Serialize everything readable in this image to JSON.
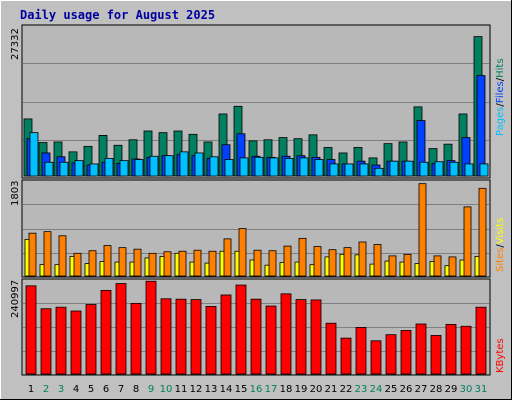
{
  "chart_data": [
    {
      "type": "bar",
      "title": "Daily usage for August 2025",
      "panel": "hits-files-pages",
      "ymax_label": "27332",
      "ylim": [
        0,
        27332
      ],
      "right_labels": [
        {
          "text": "Pages",
          "color": "#00c0ff"
        },
        {
          "text": "/",
          "color": "#000000"
        },
        {
          "text": "Files",
          "color": "#0040ff"
        },
        {
          "text": "/",
          "color": "#000000"
        },
        {
          "text": "Hits",
          "color": "#008060"
        }
      ],
      "categories": [
        "1",
        "2",
        "3",
        "4",
        "5",
        "6",
        "7",
        "8",
        "9",
        "10",
        "11",
        "12",
        "13",
        "14",
        "15",
        "16",
        "17",
        "18",
        "19",
        "20",
        "21",
        "22",
        "23",
        "24",
        "25",
        "26",
        "27",
        "28",
        "29",
        "30",
        "31"
      ],
      "series": [
        {
          "name": "Hits",
          "color": "#008060",
          "values": [
            10400,
            6100,
            6200,
            4400,
            5400,
            7400,
            5600,
            6600,
            8200,
            7900,
            8200,
            7600,
            6200,
            11300,
            12700,
            6400,
            6600,
            7000,
            6800,
            7500,
            5200,
            4200,
            5200,
            3300,
            5900,
            6200,
            12600,
            5000,
            5800,
            11300,
            25400
          ]
        },
        {
          "name": "Files",
          "color": "#0040ff",
          "values": [
            6800,
            4200,
            3500,
            2400,
            2000,
            2500,
            2300,
            3100,
            3400,
            3700,
            3900,
            3700,
            3200,
            5700,
            7700,
            3600,
            3400,
            3600,
            3700,
            3400,
            3000,
            2200,
            2700,
            2000,
            2700,
            2700,
            10100,
            2300,
            2800,
            7000,
            18300
          ]
        },
        {
          "name": "Pages",
          "color": "#00c0ff",
          "values": [
            7900,
            2500,
            2500,
            2800,
            2200,
            3200,
            2800,
            3000,
            3600,
            3700,
            4400,
            4200,
            3500,
            3000,
            3300,
            3400,
            3300,
            3200,
            3300,
            3000,
            2200,
            2200,
            2200,
            1400,
            2700,
            2700,
            2500,
            2600,
            2500,
            2200,
            2200
          ]
        }
      ]
    },
    {
      "type": "bar",
      "panel": "visits-sites",
      "ymax_label": "1803",
      "ylim": [
        0,
        1803
      ],
      "right_labels": [
        {
          "text": "Sites",
          "color": "#ff8000"
        },
        {
          "text": "/",
          "color": "#000000"
        },
        {
          "text": "Visits",
          "color": "#ffff00"
        }
      ],
      "categories": [
        "1",
        "2",
        "3",
        "4",
        "5",
        "6",
        "7",
        "8",
        "9",
        "10",
        "11",
        "12",
        "13",
        "14",
        "15",
        "16",
        "17",
        "18",
        "19",
        "20",
        "21",
        "22",
        "23",
        "24",
        "25",
        "26",
        "27",
        "28",
        "29",
        "30",
        "31"
      ],
      "series": [
        {
          "name": "Visits",
          "color": "#ffff00",
          "values": [
            710,
            220,
            220,
            380,
            240,
            280,
            270,
            270,
            350,
            380,
            440,
            270,
            250,
            480,
            480,
            310,
            210,
            260,
            270,
            220,
            370,
            420,
            410,
            230,
            290,
            270,
            240,
            280,
            200,
            310,
            380
          ]
        },
        {
          "name": "Sites",
          "color": "#ff8000",
          "values": [
            830,
            860,
            780,
            440,
            490,
            590,
            550,
            520,
            440,
            470,
            480,
            500,
            480,
            720,
            920,
            500,
            490,
            580,
            730,
            570,
            510,
            550,
            660,
            610,
            390,
            420,
            1790,
            390,
            370,
            1340,
            1700
          ]
        }
      ]
    },
    {
      "type": "bar",
      "panel": "kbytes",
      "ymax_label": "240997",
      "ylim": [
        0,
        240997
      ],
      "right_labels": [
        {
          "text": "KBytes",
          "color": "#ff0000"
        }
      ],
      "categories": [
        "1",
        "2",
        "3",
        "4",
        "5",
        "6",
        "7",
        "8",
        "9",
        "10",
        "11",
        "12",
        "13",
        "14",
        "15",
        "16",
        "17",
        "18",
        "19",
        "20",
        "21",
        "22",
        "23",
        "24",
        "25",
        "26",
        "27",
        "28",
        "29",
        "30",
        "31"
      ],
      "series": [
        {
          "name": "KBytes",
          "color": "#ff0000",
          "values": [
            231000,
            171000,
            175000,
            165000,
            182000,
            219000,
            237000,
            185000,
            243000,
            197000,
            196000,
            195000,
            177000,
            207000,
            233000,
            196000,
            178000,
            210000,
            195000,
            194000,
            133000,
            94000,
            122000,
            87000,
            103000,
            114000,
            131000,
            101000,
            130000,
            125000,
            175000
          ]
        }
      ]
    }
  ],
  "x_axis": {
    "labels": [
      "1",
      "2",
      "3",
      "4",
      "5",
      "6",
      "7",
      "8",
      "9",
      "10",
      "11",
      "12",
      "13",
      "14",
      "15",
      "16",
      "17",
      "18",
      "19",
      "20",
      "21",
      "22",
      "23",
      "24",
      "25",
      "26",
      "27",
      "28",
      "29",
      "30",
      "31"
    ],
    "weekend_days": [
      2,
      3,
      9,
      10,
      16,
      17,
      23,
      24,
      30,
      31
    ],
    "weekday_color": "#000000",
    "weekend_color": "#00805c"
  }
}
